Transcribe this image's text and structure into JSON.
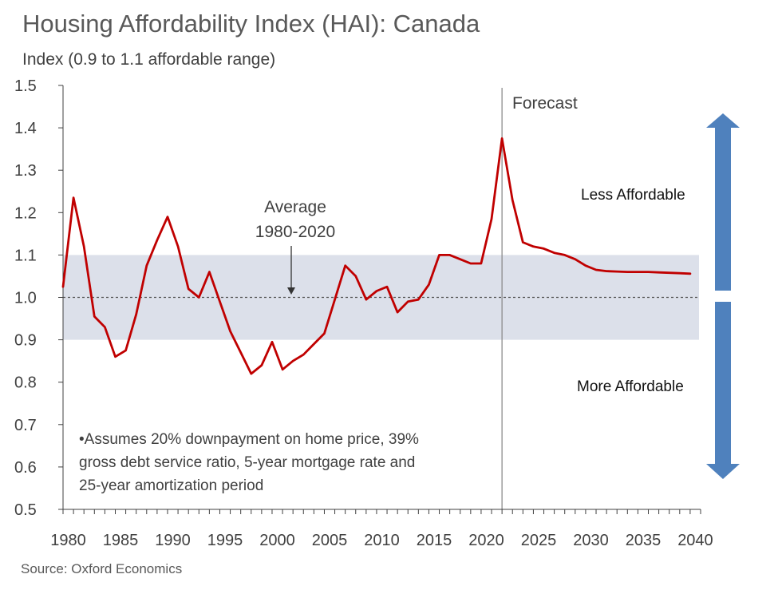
{
  "header": {
    "title": "Housing Affordability Index (HAI): Canada",
    "subtitle": "Index (0.9 to 1.1 affordable range)"
  },
  "footer": {
    "source": "Source: Oxford Economics"
  },
  "chart_data": {
    "type": "line",
    "title": "Housing Affordability Index (HAI): Canada",
    "ylabel": "Index (0.9 to 1.1 affordable range)",
    "xlabel": "",
    "ylim": [
      0.5,
      1.5
    ],
    "xlim": [
      1980,
      2040
    ],
    "y_ticks": [
      "0.5",
      "0.6",
      "0.7",
      "0.8",
      "0.9",
      "1.0",
      "1.1",
      "1.2",
      "1.3",
      "1.4",
      "1.5"
    ],
    "x_ticks": [
      "1980",
      "1985",
      "1990",
      "1995",
      "2000",
      "2005",
      "2010",
      "2015",
      "2020",
      "2025",
      "2030",
      "2035",
      "2040"
    ],
    "affordable_band": [
      0.9,
      1.1
    ],
    "average_line": 1.0,
    "forecast_start": 2021.5,
    "series": [
      {
        "color": "#c00000",
        "x": [
          1979.5,
          1980.5,
          1981.5,
          1982.5,
          1983.5,
          1984.5,
          1985.5,
          1986.5,
          1987.5,
          1988.5,
          1989.5,
          1990.5,
          1991.5,
          1992.5,
          1993.5,
          1994.5,
          1995.5,
          1996.5,
          1997.5,
          1998.5,
          1999.5,
          2000.5,
          2001.5,
          2002.5,
          2003.5,
          2004.5,
          2005.5,
          2006.5,
          2007.5,
          2008.5,
          2009.5,
          2010.5,
          2011.5,
          2012.5,
          2013.5,
          2014.5,
          2015.5,
          2016.5,
          2017.5,
          2018.5,
          2019.5,
          2020.5,
          2021.5,
          2022.5,
          2023.5,
          2024.5,
          2025.5,
          2026.5,
          2027.5,
          2028.5,
          2029.5,
          2030.5,
          2031.5,
          2032.5,
          2033.5,
          2034.5,
          2035.5,
          2036.5,
          2037.5,
          2038.5,
          2039.5
        ],
        "y": [
          1.025,
          1.235,
          1.12,
          0.955,
          0.93,
          0.86,
          0.875,
          0.96,
          1.075,
          1.135,
          1.19,
          1.12,
          1.02,
          1.0,
          1.06,
          0.99,
          0.92,
          0.87,
          0.82,
          0.84,
          0.895,
          0.83,
          0.85,
          0.865,
          0.89,
          0.915,
          0.995,
          1.075,
          1.05,
          0.995,
          1.015,
          1.025,
          0.965,
          0.99,
          0.995,
          1.03,
          1.1,
          1.1,
          1.09,
          1.08,
          1.08,
          1.185,
          1.375,
          1.23,
          1.13,
          1.12,
          1.115,
          1.105,
          1.1,
          1.09,
          1.075,
          1.065,
          1.062,
          1.061,
          1.06,
          1.06,
          1.06,
          1.059,
          1.058,
          1.057,
          1.056
        ]
      }
    ],
    "annotations": {
      "forecast": "Forecast",
      "average": [
        "Average",
        "1980-2020"
      ],
      "less_affordable": "Less Affordable",
      "more_affordable": "More Affordable",
      "note": [
        "•Assumes 20% downpayment on home price, 39%",
        "gross debt service ratio, 5-year mortgage rate and",
        "25-year amortization period"
      ]
    },
    "colors": {
      "line": "#c00000",
      "band": "#dce0ea",
      "arrow": "#4f81bd",
      "axis": "#404040"
    }
  }
}
